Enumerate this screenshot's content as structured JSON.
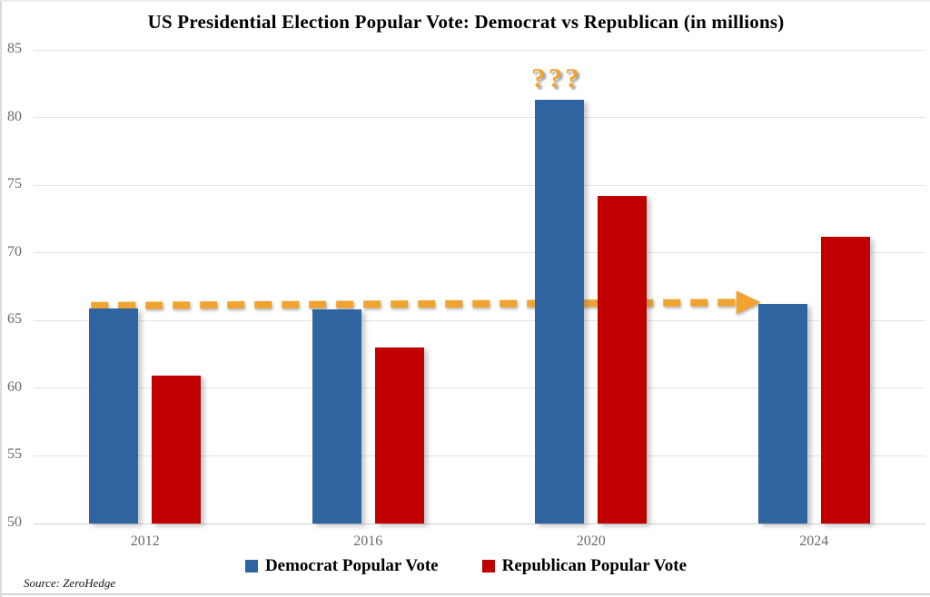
{
  "title": "US Presidential Election Popular Vote: Democrat vs Republican (in millions)",
  "source": "Source: ZeroHedge",
  "annotation": {
    "question_marks": "???",
    "arrow_note": "dashed horizontal arrow from 2012 Democrat bar top to 2024 Democrat bar top"
  },
  "colors": {
    "democrat": "#2E65A1",
    "republican": "#C00000",
    "accent_orange": "#F0A32F",
    "grid": "#E4E4E4",
    "axis_text": "#6A6A6A"
  },
  "chart_data": {
    "type": "bar",
    "title": "US Presidential Election Popular Vote: Democrat vs Republican (in millions)",
    "categories": [
      "2012",
      "2016",
      "2020",
      "2024"
    ],
    "series": [
      {
        "name": "Democrat Popular Vote",
        "color": "#2E65A1",
        "values": [
          65.9,
          65.8,
          81.3,
          66.2
        ]
      },
      {
        "name": "Republican Popular Vote",
        "color": "#C00000",
        "values": [
          60.9,
          63.0,
          74.2,
          71.2
        ]
      }
    ],
    "xlabel": "",
    "ylabel": "",
    "ylim": [
      50,
      85
    ],
    "ytick_step": 5,
    "yticks": [
      50,
      55,
      60,
      65,
      70,
      75,
      80,
      85
    ],
    "grid": "horizontal",
    "legend_position": "bottom"
  }
}
